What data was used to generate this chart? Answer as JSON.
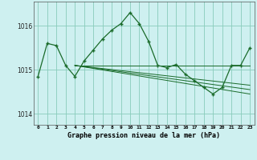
{
  "title": "Graphe pression niveau de la mer (hPa)",
  "bg_color": "#cef0f0",
  "grid_color": "#88ccbb",
  "line_color": "#1a6b2a",
  "marker_color": "#1a6b2a",
  "xlim": [
    -0.5,
    23.5
  ],
  "ylim": [
    1013.75,
    1016.55
  ],
  "yticks": [
    1014,
    1015,
    1016
  ],
  "xtick_labels": [
    "0",
    "1",
    "2",
    "3",
    "4",
    "5",
    "6",
    "7",
    "8",
    "9",
    "10",
    "11",
    "12",
    "13",
    "14",
    "15",
    "16",
    "17",
    "18",
    "19",
    "20",
    "21",
    "22",
    "23"
  ],
  "series1": {
    "x": [
      0,
      1,
      2,
      3,
      4,
      5,
      6,
      7,
      8,
      9,
      10,
      11,
      12,
      13,
      14,
      15,
      16,
      17,
      18,
      19,
      20,
      21,
      22,
      23
    ],
    "y": [
      1014.85,
      1015.6,
      1015.55,
      1015.1,
      1014.85,
      1015.2,
      1015.45,
      1015.7,
      1015.9,
      1016.05,
      1016.3,
      1016.05,
      1015.65,
      1015.1,
      1015.05,
      1015.12,
      1014.9,
      1014.75,
      1014.6,
      1014.45,
      1014.6,
      1015.1,
      1015.1,
      1015.5
    ]
  },
  "series_horiz": {
    "x": [
      4,
      23
    ],
    "y": [
      1015.1,
      1015.1
    ]
  },
  "series_diag1": {
    "x": [
      4,
      23
    ],
    "y": [
      1015.1,
      1014.45
    ]
  },
  "series_diag2": {
    "x": [
      4,
      23
    ],
    "y": [
      1015.1,
      1014.55
    ]
  },
  "series_diag3": {
    "x": [
      4,
      23
    ],
    "y": [
      1015.1,
      1014.65
    ]
  }
}
